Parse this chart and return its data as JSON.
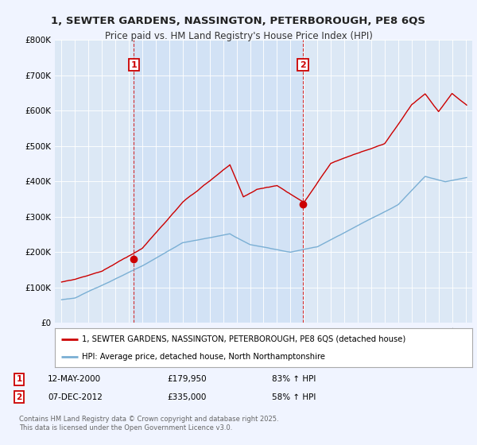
{
  "title_line1": "1, SEWTER GARDENS, NASSINGTON, PETERBOROUGH, PE8 6QS",
  "title_line2": "Price paid vs. HM Land Registry's House Price Index (HPI)",
  "background_color": "#f0f4ff",
  "plot_bg_color": "#dce8f5",
  "shade_color": "#ccdff5",
  "red_line_color": "#cc0000",
  "blue_line_color": "#7aafd4",
  "sale1_date": "12-MAY-2000",
  "sale1_price": 179950,
  "sale1_label": "83% ↑ HPI",
  "sale2_date": "07-DEC-2012",
  "sale2_price": 335000,
  "sale2_label": "58% ↑ HPI",
  "sale1_year": 2000.37,
  "sale2_year": 2012.92,
  "legend_red": "1, SEWTER GARDENS, NASSINGTON, PETERBOROUGH, PE8 6QS (detached house)",
  "legend_blue": "HPI: Average price, detached house, North Northamptonshire",
  "footnote": "Contains HM Land Registry data © Crown copyright and database right 2025.\nThis data is licensed under the Open Government Licence v3.0.",
  "ylim_max": 800000,
  "yticks": [
    0,
    100000,
    200000,
    300000,
    400000,
    500000,
    600000,
    700000,
    800000
  ],
  "xlim_min": 1994.5,
  "xlim_max": 2025.5
}
